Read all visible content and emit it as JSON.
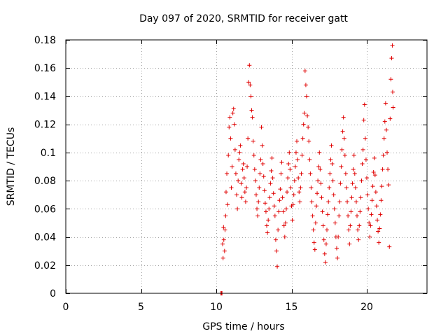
{
  "chart_data": {
    "type": "scatter",
    "title": "Day 097 of 2020, SRMTID for receiver gatt",
    "xlabel": "GPS time / hours",
    "ylabel": "SRMTID / TECUs",
    "xlim": [
      0,
      24
    ],
    "ylim": [
      0,
      0.18
    ],
    "x_ticks": [
      0,
      5,
      10,
      15,
      20
    ],
    "y_ticks": [
      0,
      0.02,
      0.04,
      0.06,
      0.08,
      0.1,
      0.12,
      0.14,
      0.16,
      0.18
    ],
    "x_tick_labels": [
      "0",
      "5",
      "10",
      "15",
      "20"
    ],
    "y_tick_labels": [
      "0",
      "0.02",
      "0.04",
      "0.06",
      "0.08",
      "0.1",
      "0.12",
      "0.14",
      "0.16",
      "0.18"
    ],
    "grid": true,
    "marker": "+",
    "point_color": "#e00000",
    "grid_color": "#a0a0a0",
    "series": [
      {
        "name": "SRMTID",
        "points": [
          [
            10.3,
            0.0
          ],
          [
            10.35,
            0.0
          ],
          [
            10.38,
            0.0
          ],
          [
            10.42,
            0.035
          ],
          [
            10.45,
            0.025
          ],
          [
            10.48,
            0.047
          ],
          [
            10.5,
            0.038
          ],
          [
            10.55,
            0.03
          ],
          [
            10.58,
            0.045
          ],
          [
            10.62,
            0.055
          ],
          [
            10.65,
            0.072
          ],
          [
            10.7,
            0.085
          ],
          [
            10.75,
            0.063
          ],
          [
            10.8,
            0.098
          ],
          [
            10.85,
            0.118
          ],
          [
            10.9,
            0.125
          ],
          [
            10.95,
            0.11
          ],
          [
            11.0,
            0.075
          ],
          [
            11.05,
            0.09
          ],
          [
            11.1,
            0.128
          ],
          [
            11.15,
            0.131
          ],
          [
            11.2,
            0.12
          ],
          [
            11.25,
            0.102
          ],
          [
            11.3,
            0.085
          ],
          [
            11.35,
            0.07
          ],
          [
            11.4,
            0.06
          ],
          [
            11.45,
            0.08
          ],
          [
            11.5,
            0.095
          ],
          [
            11.55,
            0.1
          ],
          [
            11.6,
            0.105
          ],
          [
            11.65,
            0.078
          ],
          [
            11.7,
            0.068
          ],
          [
            11.75,
            0.088
          ],
          [
            11.8,
            0.092
          ],
          [
            11.85,
            0.082
          ],
          [
            11.9,
            0.072
          ],
          [
            11.95,
            0.065
          ],
          [
            12.0,
            0.075
          ],
          [
            12.05,
            0.09
          ],
          [
            12.1,
            0.11
          ],
          [
            12.15,
            0.15
          ],
          [
            12.2,
            0.162
          ],
          [
            12.25,
            0.148
          ],
          [
            12.3,
            0.14
          ],
          [
            12.35,
            0.13
          ],
          [
            12.4,
            0.125
          ],
          [
            12.45,
            0.108
          ],
          [
            12.5,
            0.098
          ],
          [
            12.55,
            0.088
          ],
          [
            12.6,
            0.08
          ],
          [
            12.65,
            0.07
          ],
          [
            12.7,
            0.06
          ],
          [
            12.75,
            0.055
          ],
          [
            12.8,
            0.065
          ],
          [
            12.85,
            0.075
          ],
          [
            12.9,
            0.085
          ],
          [
            12.95,
            0.095
          ],
          [
            13.0,
            0.118
          ],
          [
            13.05,
            0.105
          ],
          [
            13.1,
            0.092
          ],
          [
            13.15,
            0.083
          ],
          [
            13.2,
            0.073
          ],
          [
            13.25,
            0.064
          ],
          [
            13.3,
            0.058
          ],
          [
            13.35,
            0.048
          ],
          [
            13.4,
            0.043
          ],
          [
            13.45,
            0.052
          ],
          [
            13.5,
            0.06
          ],
          [
            13.55,
            0.068
          ],
          [
            13.6,
            0.078
          ],
          [
            13.65,
            0.087
          ],
          [
            13.7,
            0.096
          ],
          [
            13.75,
            0.082
          ],
          [
            13.8,
            0.071
          ],
          [
            13.85,
            0.062
          ],
          [
            13.9,
            0.055
          ],
          [
            13.95,
            0.038
          ],
          [
            14.0,
            0.03
          ],
          [
            14.05,
            0.019
          ],
          [
            14.1,
            0.045
          ],
          [
            14.15,
            0.058
          ],
          [
            14.2,
            0.066
          ],
          [
            14.25,
            0.074
          ],
          [
            14.3,
            0.085
          ],
          [
            14.35,
            0.093
          ],
          [
            14.4,
            0.068
          ],
          [
            14.45,
            0.058
          ],
          [
            14.5,
            0.048
          ],
          [
            14.55,
            0.04
          ],
          [
            14.6,
            0.05
          ],
          [
            14.65,
            0.06
          ],
          [
            14.7,
            0.072
          ],
          [
            14.75,
            0.082
          ],
          [
            14.8,
            0.092
          ],
          [
            14.85,
            0.1
          ],
          [
            14.9,
            0.088
          ],
          [
            14.95,
            0.075
          ],
          [
            15.0,
            0.062
          ],
          [
            15.05,
            0.052
          ],
          [
            15.1,
            0.063
          ],
          [
            15.15,
            0.07
          ],
          [
            15.2,
            0.08
          ],
          [
            15.25,
            0.09
          ],
          [
            15.3,
            0.1
          ],
          [
            15.35,
            0.108
          ],
          [
            15.4,
            0.095
          ],
          [
            15.45,
            0.082
          ],
          [
            15.5,
            0.072
          ],
          [
            15.55,
            0.065
          ],
          [
            15.6,
            0.075
          ],
          [
            15.65,
            0.085
          ],
          [
            15.7,
            0.098
          ],
          [
            15.75,
            0.11
          ],
          [
            15.8,
            0.12
          ],
          [
            15.85,
            0.128
          ],
          [
            15.9,
            0.158
          ],
          [
            15.95,
            0.148
          ],
          [
            16.0,
            0.14
          ],
          [
            16.05,
            0.126
          ],
          [
            16.1,
            0.118
          ],
          [
            16.15,
            0.108
          ],
          [
            16.2,
            0.095
          ],
          [
            16.25,
            0.085
          ],
          [
            16.3,
            0.075
          ],
          [
            16.35,
            0.065
          ],
          [
            16.4,
            0.055
          ],
          [
            16.45,
            0.045
          ],
          [
            16.5,
            0.036
          ],
          [
            16.55,
            0.031
          ],
          [
            16.6,
            0.05
          ],
          [
            16.65,
            0.062
          ],
          [
            16.7,
            0.071
          ],
          [
            16.75,
            0.08
          ],
          [
            16.8,
            0.09
          ],
          [
            16.85,
            0.1
          ],
          [
            16.9,
            0.088
          ],
          [
            16.95,
            0.078
          ],
          [
            17.0,
            0.068
          ],
          [
            17.05,
            0.058
          ],
          [
            17.1,
            0.048
          ],
          [
            17.15,
            0.038
          ],
          [
            17.2,
            0.028
          ],
          [
            17.25,
            0.022
          ],
          [
            17.3,
            0.035
          ],
          [
            17.35,
            0.045
          ],
          [
            17.4,
            0.056
          ],
          [
            17.45,
            0.065
          ],
          [
            17.5,
            0.075
          ],
          [
            17.55,
            0.085
          ],
          [
            17.6,
            0.095
          ],
          [
            17.65,
            0.105
          ],
          [
            17.7,
            0.092
          ],
          [
            17.75,
            0.08
          ],
          [
            17.8,
            0.07
          ],
          [
            17.85,
            0.06
          ],
          [
            17.9,
            0.05
          ],
          [
            17.95,
            0.04
          ],
          [
            18.0,
            0.032
          ],
          [
            18.05,
            0.025
          ],
          [
            18.1,
            0.04
          ],
          [
            18.15,
            0.055
          ],
          [
            18.2,
            0.065
          ],
          [
            18.25,
            0.078
          ],
          [
            18.3,
            0.09
          ],
          [
            18.35,
            0.102
          ],
          [
            18.4,
            0.115
          ],
          [
            18.45,
            0.125
          ],
          [
            18.5,
            0.11
          ],
          [
            18.55,
            0.098
          ],
          [
            18.6,
            0.085
          ],
          [
            18.65,
            0.075
          ],
          [
            18.7,
            0.065
          ],
          [
            18.75,
            0.055
          ],
          [
            18.8,
            0.045
          ],
          [
            18.85,
            0.035
          ],
          [
            18.9,
            0.048
          ],
          [
            18.95,
            0.058
          ],
          [
            19.0,
            0.068
          ],
          [
            19.05,
            0.078
          ],
          [
            19.1,
            0.088
          ],
          [
            19.15,
            0.098
          ],
          [
            19.2,
            0.085
          ],
          [
            19.25,
            0.075
          ],
          [
            19.3,
            0.065
          ],
          [
            19.35,
            0.055
          ],
          [
            19.4,
            0.045
          ],
          [
            19.45,
            0.038
          ],
          [
            19.5,
            0.048
          ],
          [
            19.55,
            0.058
          ],
          [
            19.6,
            0.068
          ],
          [
            19.65,
            0.08
          ],
          [
            19.7,
            0.092
          ],
          [
            19.75,
            0.102
          ],
          [
            19.8,
            0.123
          ],
          [
            19.85,
            0.134
          ],
          [
            19.9,
            0.11
          ],
          [
            19.95,
            0.095
          ],
          [
            20.0,
            0.082
          ],
          [
            20.05,
            0.07
          ],
          [
            20.1,
            0.06
          ],
          [
            20.15,
            0.05
          ],
          [
            20.2,
            0.04
          ],
          [
            20.25,
            0.048
          ],
          [
            20.3,
            0.056
          ],
          [
            20.35,
            0.066
          ],
          [
            20.4,
            0.076
          ],
          [
            20.45,
            0.086
          ],
          [
            20.5,
            0.096
          ],
          [
            20.55,
            0.084
          ],
          [
            20.6,
            0.072
          ],
          [
            20.65,
            0.062
          ],
          [
            20.7,
            0.052
          ],
          [
            20.75,
            0.044
          ],
          [
            20.8,
            0.036
          ],
          [
            20.85,
            0.046
          ],
          [
            20.9,
            0.056
          ],
          [
            20.95,
            0.066
          ],
          [
            21.0,
            0.076
          ],
          [
            21.05,
            0.088
          ],
          [
            21.1,
            0.098
          ],
          [
            21.15,
            0.11
          ],
          [
            21.2,
            0.122
          ],
          [
            21.25,
            0.135
          ],
          [
            21.3,
            0.116
          ],
          [
            21.35,
            0.1
          ],
          [
            21.4,
            0.088
          ],
          [
            21.45,
            0.077
          ],
          [
            21.5,
            0.033
          ],
          [
            21.55,
            0.124
          ],
          [
            21.6,
            0.152
          ],
          [
            21.65,
            0.167
          ],
          [
            21.7,
            0.176
          ],
          [
            21.72,
            0.143
          ],
          [
            21.75,
            0.132
          ]
        ]
      }
    ]
  }
}
